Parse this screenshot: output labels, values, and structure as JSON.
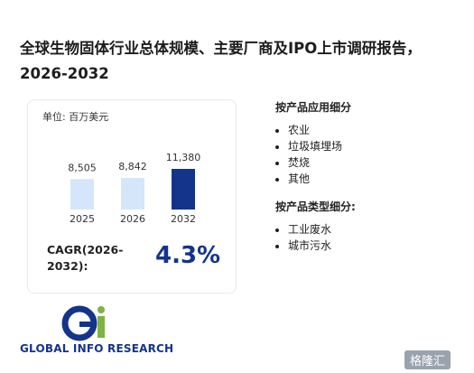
{
  "chart_data": {
    "type": "bar",
    "title": "全球生物固体行业总体规模、主要厂商及IPO上市调研报告，2026-2032",
    "subtitle": "单位: 百万美元",
    "categories": [
      "2025",
      "2026",
      "2032"
    ],
    "values": [
      8505,
      8842,
      11380
    ],
    "value_labels": [
      "8,505",
      "8,842",
      "11,380"
    ],
    "colors": [
      "#d5e6fa",
      "#d5e6fa",
      "#14348c"
    ],
    "annotation": {
      "label": "CAGR(2026-2032):",
      "value": "4.3%"
    }
  },
  "sidebar": [
    {
      "heading": "按产品应用细分",
      "items": [
        "农业",
        "垃圾填埋场",
        "焚烧",
        "其他"
      ]
    },
    {
      "heading": "按产品类型细分:",
      "items": [
        "工业废水",
        "城市污水"
      ]
    }
  ],
  "logo": {
    "text": "GLOBAL INFO RESEARCH"
  },
  "badge": "格隆汇"
}
